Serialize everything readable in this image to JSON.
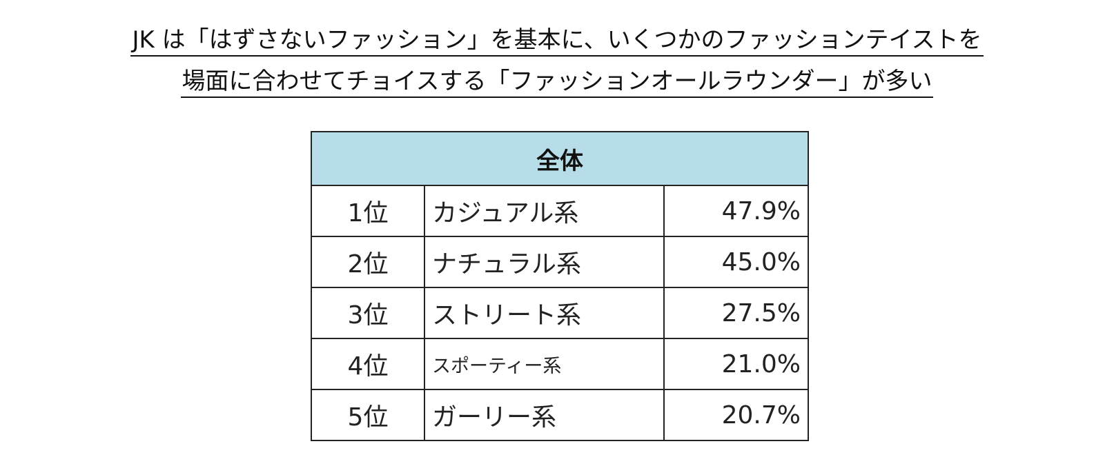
{
  "header": {
    "title": [
      "JK は「はずさないファッション」を基本に、いくつかのファッションテイストを",
      "場面に合わせてチョイスする「ファッションオールラウンダー」が多い"
    ]
  },
  "table": {
    "header": "全体",
    "rows": [
      [
        "1位",
        "カジュアル系",
        "47.9%"
      ],
      [
        "2位",
        "ナチュラル系",
        "45.0%"
      ],
      [
        "3位",
        "ストリート系",
        "27.5%"
      ],
      [
        "4位",
        "スポーティー系",
        "21.0%"
      ],
      [
        "5位",
        "ガーリー系",
        "20.7%"
      ]
    ]
  }
}
